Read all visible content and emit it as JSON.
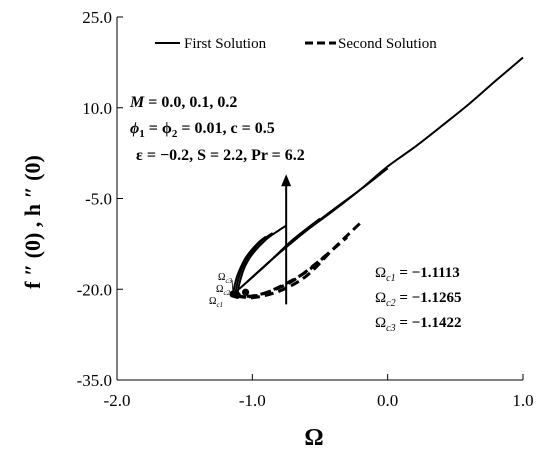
{
  "chart_data": {
    "type": "line",
    "xlabel": "Ω",
    "ylabel": "f ″ (0) , h ″ (0)",
    "xlim": [
      -2.0,
      1.0
    ],
    "ylim": [
      -35.0,
      25.0
    ],
    "x_ticks": [
      "-2.0",
      "-1.0",
      "0.0",
      "1.0"
    ],
    "y_ticks": [
      "25.0",
      "10.0",
      "-5.0",
      "-20.0",
      "-35.0"
    ],
    "x_tick_values": [
      -2.0,
      -1.0,
      0.0,
      1.0
    ],
    "y_tick_values": [
      25.0,
      10.0,
      -5.0,
      -20.0,
      -35.0
    ],
    "grid": false,
    "legend": {
      "placement": "top",
      "entries": [
        {
          "label": "First Solution",
          "style": "solid"
        },
        {
          "label": "Second Solution",
          "style": "dashed"
        }
      ]
    },
    "parameters": {
      "line1_lhs": "M",
      "line1_rhs": " = 0.0, 0.1, 0.2",
      "line2_lhs": "ϕ",
      "line2_sub1": "1",
      "line2_mid": " = ϕ",
      "line2_sub2": "2",
      "line2_rhs": " = 0.01, c = 0.5",
      "line3": "ε = −0.2, S = 2.2, Pr = 6.2"
    },
    "critical_values": [
      {
        "symbol": "Ω",
        "sub": "c1",
        "text": " = −1.1113"
      },
      {
        "symbol": "Ω",
        "sub": "c2",
        "text": " = −1.1265"
      },
      {
        "symbol": "Ω",
        "sub": "c3",
        "text": " = −1.1422"
      }
    ],
    "critical_labels": [
      {
        "symbol": "Ω",
        "sub": "c3"
      },
      {
        "symbol": "Ω",
        "sub": "c2"
      },
      {
        "symbol": "Ω",
        "sub": "c1"
      }
    ],
    "series": [
      {
        "style": "solid",
        "x": [
          -1.0,
          -0.8,
          -0.6,
          -0.4,
          -0.2,
          0.0,
          0.2,
          0.4,
          0.6,
          0.8,
          1.0
        ],
        "y": [
          -18.0,
          -14.0,
          -10.3,
          -7.0,
          -3.5,
          0.3,
          3.5,
          7.0,
          10.6,
          14.5,
          18.3
        ]
      },
      {
        "style": "solid",
        "x": [
          -1.05,
          -0.8,
          -0.5,
          -0.2,
          0.0
        ],
        "y": [
          -19.0,
          -14.0,
          -8.5,
          -3.5,
          0.0
        ]
      },
      {
        "style": "solid",
        "x": [
          -1.1,
          -0.9,
          -0.7,
          -0.5
        ],
        "y": [
          -20.0,
          -16.0,
          -11.8,
          -8.3
        ]
      },
      {
        "style": "solid",
        "x": [
          -1.1113,
          -1.1,
          -1.08,
          -1.05,
          -1.0,
          -0.9,
          -0.8,
          -0.75
        ],
        "y": [
          -21.0,
          -19.5,
          -17.8,
          -16.0,
          -14.2,
          -11.8,
          -10.2,
          -9.5
        ]
      },
      {
        "style": "solid",
        "x": [
          -1.1265,
          -1.115,
          -1.095,
          -1.065,
          -1.02,
          -0.93,
          -0.85
        ],
        "y": [
          -20.9,
          -19.4,
          -17.7,
          -16.0,
          -14.3,
          -12.0,
          -10.7
        ]
      },
      {
        "style": "solid",
        "x": [
          -1.1422,
          -1.13,
          -1.11,
          -1.08,
          -1.04,
          -0.96,
          -0.9
        ],
        "y": [
          -20.8,
          -19.3,
          -17.7,
          -16.1,
          -14.5,
          -12.4,
          -11.3
        ]
      },
      {
        "style": "dashed",
        "x": [
          -1.1113,
          -1.0,
          -0.8,
          -0.6,
          -0.4,
          -0.2
        ],
        "y": [
          -21.0,
          -21.4,
          -20.3,
          -17.8,
          -13.3,
          -9.0
        ]
      },
      {
        "style": "dashed",
        "x": [
          -1.1265,
          -1.05,
          -0.9,
          -0.7,
          -0.5,
          -0.3
        ],
        "y": [
          -20.9,
          -21.3,
          -20.6,
          -18.6,
          -15.2,
          -11.4
        ]
      },
      {
        "style": "dashed",
        "x": [
          -1.1422,
          -1.08,
          -0.95,
          -0.8,
          -0.6,
          -0.45
        ],
        "y": [
          -20.8,
          -21.2,
          -20.9,
          -19.6,
          -17.1,
          -14.3
        ]
      }
    ],
    "critical_points": [
      {
        "x": -1.1113,
        "y": -21.0
      },
      {
        "x": -1.1265,
        "y": -20.9
      },
      {
        "x": -1.1422,
        "y": -20.8
      },
      {
        "x": -1.05,
        "y": -20.5
      }
    ],
    "arrow": {
      "x": -0.75,
      "y_from": -22.5,
      "y_to": -1.0
    }
  }
}
